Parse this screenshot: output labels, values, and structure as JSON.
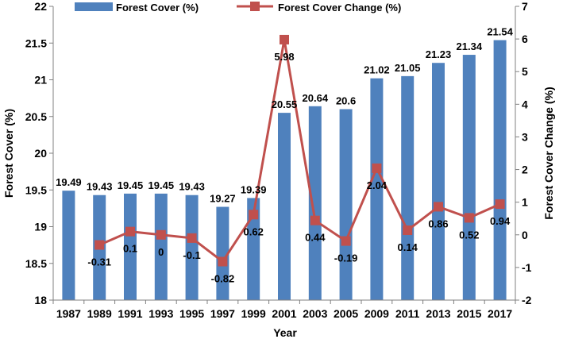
{
  "chart_data": {
    "type": "bar",
    "xlabel": "Year",
    "ylabel": "Forest Cover (%)",
    "y2label": "Forest Cover Change (%)",
    "categories": [
      "1987",
      "1989",
      "1991",
      "1993",
      "1995",
      "1997",
      "1999",
      "2001",
      "2003",
      "2005",
      "2009",
      "2011",
      "2013",
      "2015",
      "2017"
    ],
    "ylim": [
      18,
      22
    ],
    "yticks": [
      "18",
      "18.5",
      "19",
      "19.5",
      "20",
      "20.5",
      "21",
      "21.5",
      "22"
    ],
    "y2lim": [
      -2,
      7
    ],
    "y2ticks": [
      "-2",
      "-1",
      "0",
      "1",
      "2",
      "3",
      "4",
      "5",
      "6",
      "7"
    ],
    "legend_position": "top",
    "grid": false,
    "series": [
      {
        "name": "Forest Cover (%)",
        "type": "bar",
        "axis": "left",
        "color": "#4F81BD",
        "values": [
          19.49,
          19.43,
          19.45,
          19.45,
          19.43,
          19.27,
          19.39,
          20.55,
          20.64,
          20.6,
          21.02,
          21.05,
          21.23,
          21.34,
          21.54
        ],
        "labels": [
          "19.49",
          "19.43",
          "19.45",
          "19.45",
          "19.43",
          "19.27",
          "19.39",
          "20.55",
          "20.64",
          "20.6",
          "21.02",
          "21.05",
          "21.23",
          "21.34",
          "21.54"
        ]
      },
      {
        "name": "Forest Cover Change (%)",
        "type": "line",
        "axis": "right",
        "color": "#C0504D",
        "x": [
          "1989",
          "1991",
          "1993",
          "1995",
          "1997",
          "1999",
          "2001",
          "2003",
          "2005",
          "2009",
          "2011",
          "2013",
          "2015",
          "2017"
        ],
        "values": [
          -0.31,
          0.1,
          0,
          -0.1,
          -0.82,
          0.62,
          5.98,
          0.44,
          -0.19,
          2.04,
          0.14,
          0.86,
          0.52,
          0.94
        ],
        "labels": [
          "-0.31",
          "0.1",
          "0",
          "-0.1",
          "-0.82",
          "0.62",
          "5.98",
          "0.44",
          "-0.19",
          "2.04",
          "0.14",
          "0.86",
          "0.52",
          "0.94"
        ]
      }
    ]
  }
}
